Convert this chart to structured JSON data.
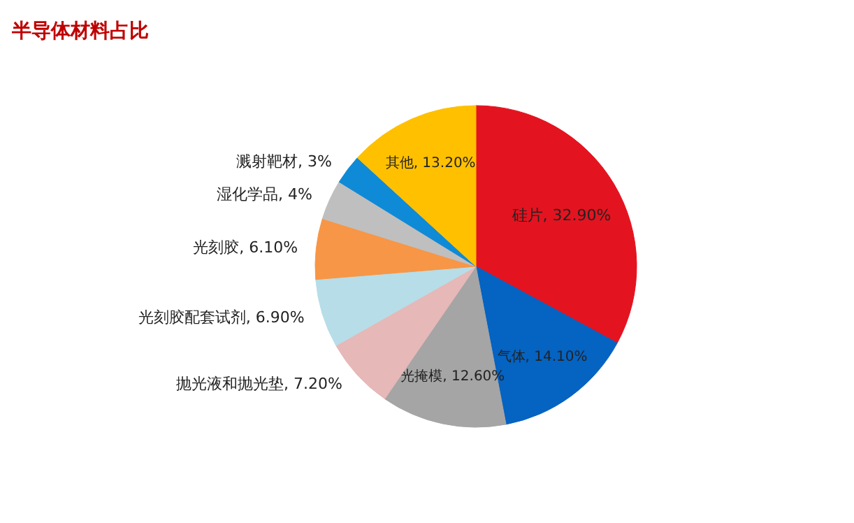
{
  "chart_data": {
    "type": "pie",
    "title": "半导体材料占比",
    "categories": [
      "硅片",
      "气体",
      "光掩模",
      "抛光液和抛光垫",
      "光刻胶配套试剂",
      "光刻胶",
      "湿化学品",
      "溅射靶材",
      "其他"
    ],
    "values": [
      32.9,
      14.1,
      12.6,
      7.2,
      6.9,
      6.1,
      4,
      3,
      13.2
    ],
    "value_labels": [
      "32.90%",
      "14.10%",
      "12.60%",
      "7.20%",
      "6.90%",
      "6.10%",
      "4%",
      "3%",
      "13.20%"
    ],
    "colors": [
      "#e41320",
      "#0563c1",
      "#a5a5a5",
      "#e6b8b7",
      "#b7dde8",
      "#f79646",
      "#bfbfbf",
      "#0f8ad6",
      "#ffc000"
    ]
  }
}
